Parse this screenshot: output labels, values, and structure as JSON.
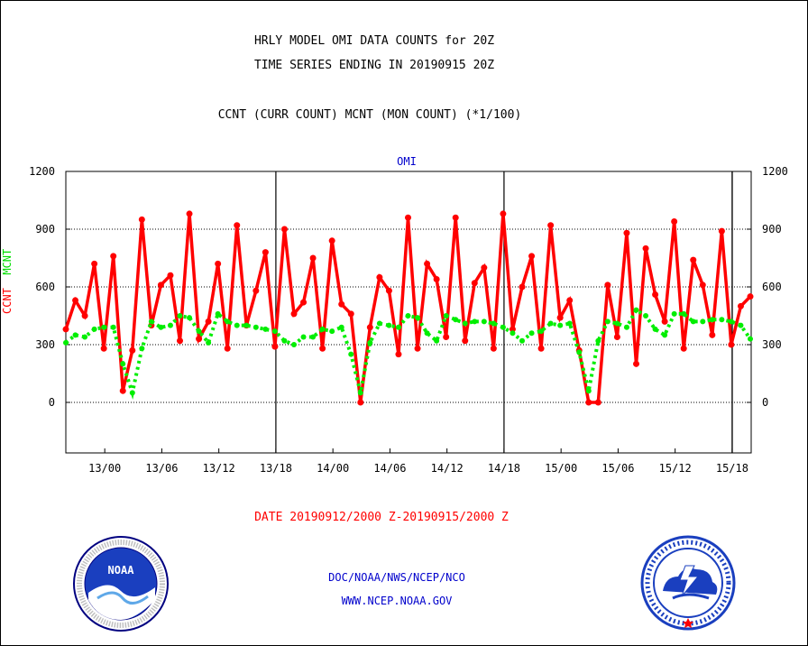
{
  "titles": {
    "line1": "HRLY MODEL OMI DATA COUNTS for 20Z",
    "line2": "TIME SERIES ENDING IN 20190915 20Z",
    "subtitle": "CCNT (CURR COUNT) MCNT (MON COUNT) (*1/100)",
    "date_range": "DATE 20190912/2000 Z-20190915/2000 Z",
    "footer_org": "DOC/NOAA/NWS/NCEP/NCO",
    "footer_url": "WWW.NCEP.NOAA.GOV"
  },
  "ylabel": {
    "ccnt": "CCNT",
    "mcnt": "MCNT"
  },
  "logos": {
    "noaa": {
      "text": "NOAA",
      "ring_text": "NATIONAL OCEANIC AND ATMOSPHERIC ADMINISTRATION · U.S. DEPARTMENT OF COMMERCE"
    },
    "nws": {
      "ring_text": "NATIONAL WEATHER SERVICE"
    }
  },
  "chart_data": {
    "type": "line",
    "plot_label": "OMI",
    "x_tick_labels": [
      "13/00",
      "13/06",
      "13/12",
      "13/18",
      "14/00",
      "14/06",
      "14/12",
      "14/18",
      "15/00",
      "15/06",
      "15/12",
      "15/18"
    ],
    "y_tick_labels": [
      "0",
      "300",
      "600",
      "900",
      "1200"
    ],
    "ylim": [
      -250,
      1200
    ],
    "grid": "dotted horizontal lines at 0, 300, 600, 900",
    "colors": {
      "ccnt": "#ff0000",
      "mcnt": "#00ee00"
    },
    "day_boundaries_hours_from_start": [
      22,
      46,
      70
    ],
    "series": [
      {
        "name": "CCNT",
        "x_hours_from_start": [
          0,
          1,
          2,
          3,
          4,
          5,
          6,
          7,
          8,
          9,
          10,
          11,
          12,
          13,
          14,
          15,
          16,
          17,
          18,
          19,
          20,
          21,
          22,
          23,
          24,
          25,
          26,
          27,
          28,
          29,
          30,
          31,
          32,
          33,
          34,
          35,
          36,
          37,
          38,
          39,
          40,
          41,
          42,
          43,
          44,
          45,
          46,
          47,
          48,
          49,
          50,
          51,
          52,
          53,
          54,
          55,
          56,
          57,
          58,
          59,
          60,
          61,
          62,
          63,
          64,
          65,
          66,
          67,
          68,
          69,
          70,
          71,
          72
        ],
        "values": [
          380,
          530,
          450,
          720,
          280,
          760,
          60,
          270,
          950,
          400,
          610,
          660,
          320,
          980,
          330,
          420,
          720,
          280,
          920,
          400,
          580,
          780,
          290,
          900,
          460,
          520,
          750,
          280,
          840,
          510,
          460,
          0,
          390,
          650,
          580,
          250,
          960,
          280,
          720,
          640,
          340,
          960,
          320,
          620,
          700,
          280,
          980,
          380,
          600,
          760,
          280,
          920,
          440,
          530,
          270,
          0,
          0,
          610,
          340,
          880,
          200,
          800,
          560,
          420,
          940,
          280,
          740,
          610,
          350,
          890,
          300,
          500,
          550
        ]
      },
      {
        "name": "MCNT",
        "x_hours_from_start": [
          0,
          1,
          2,
          3,
          4,
          5,
          6,
          7,
          8,
          9,
          10,
          11,
          12,
          13,
          14,
          15,
          16,
          17,
          18,
          19,
          20,
          21,
          22,
          23,
          24,
          25,
          26,
          27,
          28,
          29,
          30,
          31,
          32,
          33,
          34,
          35,
          36,
          37,
          38,
          39,
          40,
          41,
          42,
          43,
          44,
          45,
          46,
          47,
          48,
          49,
          50,
          51,
          52,
          53,
          54,
          55,
          56,
          57,
          58,
          59,
          60,
          61,
          62,
          63,
          64,
          65,
          66,
          67,
          68,
          69,
          70,
          71,
          72
        ],
        "values": [
          310,
          350,
          340,
          380,
          390,
          390,
          200,
          50,
          280,
          420,
          390,
          400,
          450,
          440,
          370,
          310,
          460,
          420,
          400,
          400,
          390,
          380,
          370,
          320,
          300,
          340,
          340,
          380,
          370,
          390,
          250,
          50,
          310,
          410,
          400,
          390,
          450,
          440,
          360,
          320,
          450,
          430,
          410,
          420,
          420,
          410,
          390,
          360,
          320,
          360,
          370,
          410,
          400,
          410,
          260,
          60,
          320,
          420,
          410,
          390,
          480,
          450,
          380,
          350,
          460,
          460,
          420,
          420,
          430,
          430,
          420,
          400,
          330
        ]
      }
    ]
  }
}
